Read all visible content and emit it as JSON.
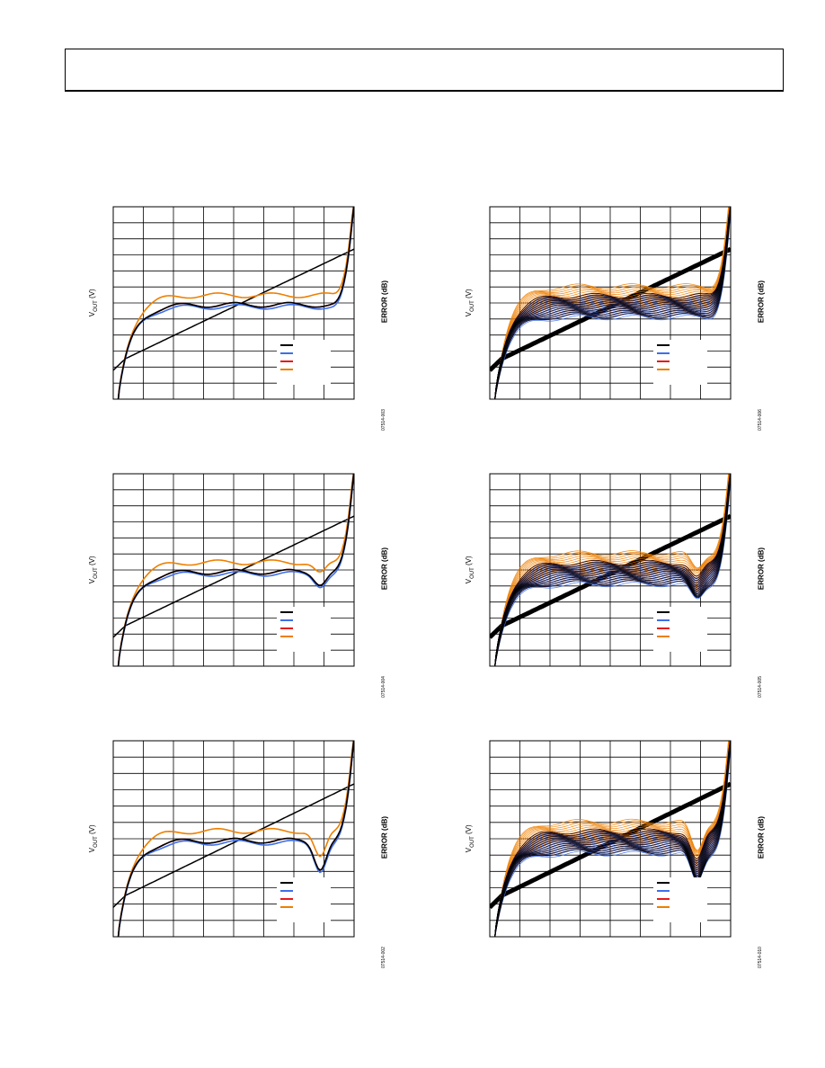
{
  "chart_data": [
    {
      "type": "line",
      "panel": "top-left",
      "ylabel_main": "V",
      "ylabel_sub": "OUT",
      "ylabel_unit": " (V)",
      "ylabel_right": "ERROR (dB)",
      "figure_id": "07514-003",
      "legend_placement": "bottom-right",
      "grid": true,
      "x_range": [
        0,
        1
      ],
      "y_range": [
        0,
        1
      ],
      "dip_depth": 0.0,
      "series": [
        {
          "color": "#000000",
          "style": "ideal"
        },
        {
          "color": "#3f6fe8",
          "style": "error"
        },
        {
          "color": "#e41a1c",
          "style": "error"
        },
        {
          "color": "#ee7f00",
          "style": "error"
        }
      ]
    },
    {
      "type": "line",
      "panel": "top-right",
      "ylabel_main": "V",
      "ylabel_sub": "OUT",
      "ylabel_unit": " (V)",
      "ylabel_right": "ERROR (dB)",
      "figure_id": "07514-006",
      "legend_placement": "bottom-right",
      "grid": true,
      "x_range": [
        0,
        1
      ],
      "y_range": [
        0,
        1
      ],
      "dip_depth": 0.0,
      "series": [
        {
          "color": "#000000",
          "style": "ideal"
        },
        {
          "color": "#3f6fe8",
          "style": "error"
        },
        {
          "color": "#e41a1c",
          "style": "error"
        },
        {
          "color": "#ee7f00",
          "style": "error"
        }
      ]
    },
    {
      "type": "line",
      "panel": "middle-left",
      "ylabel_main": "V",
      "ylabel_sub": "OUT",
      "ylabel_unit": " (V)",
      "ylabel_right": "ERROR (dB)",
      "figure_id": "07514-004",
      "legend_placement": "bottom-right",
      "grid": true,
      "x_range": [
        0,
        1
      ],
      "y_range": [
        0,
        1
      ],
      "dip_depth": 0.06,
      "series": [
        {
          "color": "#000000",
          "style": "ideal"
        },
        {
          "color": "#3f6fe8",
          "style": "error"
        },
        {
          "color": "#e41a1c",
          "style": "error"
        },
        {
          "color": "#ee7f00",
          "style": "error"
        }
      ]
    },
    {
      "type": "line",
      "panel": "middle-right",
      "ylabel_main": "V",
      "ylabel_sub": "OUT",
      "ylabel_unit": " (V)",
      "ylabel_right": "ERROR (dB)",
      "figure_id": "07514-005",
      "legend_placement": "bottom-right",
      "grid": true,
      "x_range": [
        0,
        1
      ],
      "y_range": [
        0,
        1
      ],
      "dip_depth": 0.08,
      "series": [
        {
          "color": "#000000",
          "style": "ideal"
        },
        {
          "color": "#3f6fe8",
          "style": "error"
        },
        {
          "color": "#e41a1c",
          "style": "error"
        },
        {
          "color": "#ee7f00",
          "style": "error"
        }
      ]
    },
    {
      "type": "line",
      "panel": "bottom-left",
      "ylabel_main": "V",
      "ylabel_sub": "OUT",
      "ylabel_unit": " (V)",
      "ylabel_right": "ERROR (dB)",
      "figure_id": "07514-002",
      "legend_placement": "bottom-right",
      "grid": true,
      "x_range": [
        0,
        1
      ],
      "y_range": [
        0,
        1
      ],
      "dip_depth": 0.14,
      "series": [
        {
          "color": "#000000",
          "style": "ideal"
        },
        {
          "color": "#3f6fe8",
          "style": "error"
        },
        {
          "color": "#e41a1c",
          "style": "error"
        },
        {
          "color": "#ee7f00",
          "style": "error"
        }
      ]
    },
    {
      "type": "line",
      "panel": "bottom-right",
      "ylabel_main": "V",
      "ylabel_sub": "OUT",
      "ylabel_unit": " (V)",
      "ylabel_right": "ERROR (dB)",
      "figure_id": "07514-010",
      "legend_placement": "bottom-right",
      "grid": true,
      "x_range": [
        0,
        1
      ],
      "y_range": [
        0,
        1
      ],
      "dip_depth": 0.15,
      "series": [
        {
          "color": "#000000",
          "style": "ideal"
        },
        {
          "color": "#3f6fe8",
          "style": "error"
        },
        {
          "color": "#e41a1c",
          "style": "error"
        },
        {
          "color": "#ee7f00",
          "style": "error"
        }
      ]
    }
  ]
}
